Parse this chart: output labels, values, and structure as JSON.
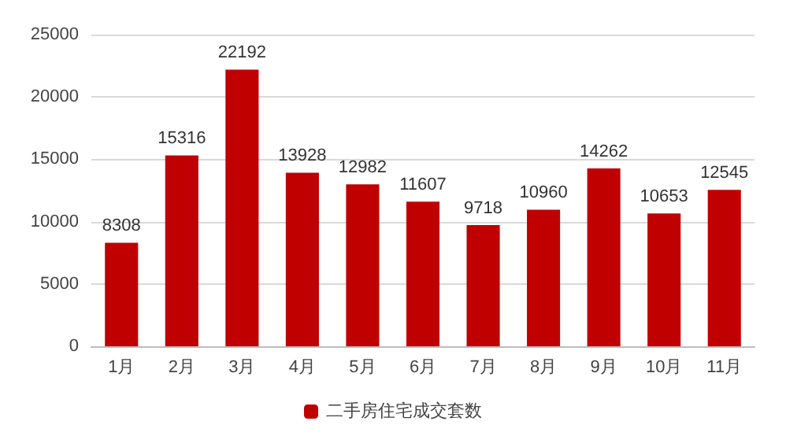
{
  "chart_data": {
    "type": "bar",
    "categories": [
      "1月",
      "2月",
      "3月",
      "4月",
      "5月",
      "6月",
      "7月",
      "8月",
      "9月",
      "10月",
      "11月"
    ],
    "series": [
      {
        "name": "二手房住宅成交套数",
        "color": "#c00000",
        "values": [
          8308,
          15316,
          22192,
          13928,
          12982,
          11607,
          9718,
          10960,
          14262,
          10653,
          12545
        ]
      }
    ],
    "ylim": [
      0,
      25000
    ],
    "yticks": [
      0,
      5000,
      10000,
      15000,
      20000,
      25000
    ],
    "grid": "y",
    "legend": "bottom",
    "data_labels": true
  }
}
